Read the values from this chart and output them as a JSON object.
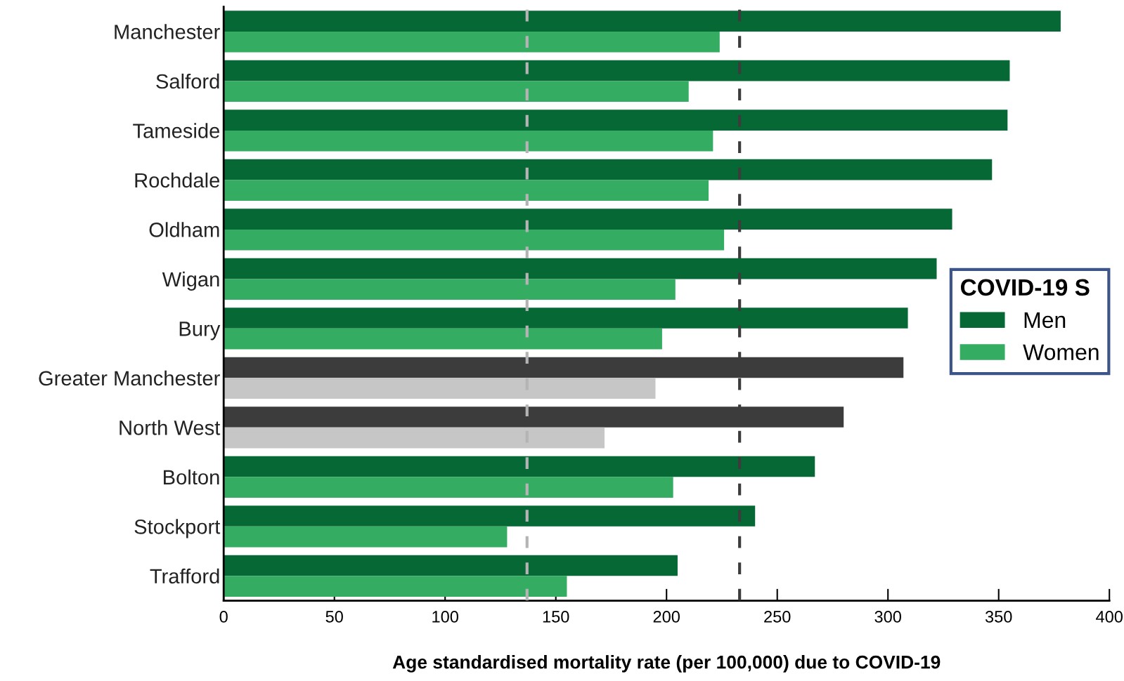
{
  "chart_data": {
    "type": "bar",
    "orientation": "horizontal",
    "xlabel": "Age standardised mortality rate (per 100,000) due to COVID-19",
    "categories": [
      "Manchester",
      "Salford",
      "Tameside",
      "Rochdale",
      "Oldham",
      "Wigan",
      "Bury",
      "Greater Manchester",
      "North West",
      "Bolton",
      "Stockport",
      "Trafford"
    ],
    "series": [
      {
        "name": "Men",
        "color": "#066835",
        "colors": [
          "#066835",
          "#066835",
          "#066835",
          "#066835",
          "#066835",
          "#066835",
          "#066835",
          "#3c3c3c",
          "#3c3c3c",
          "#066835",
          "#066835",
          "#066835"
        ],
        "values": [
          378,
          355,
          354,
          347,
          329,
          322,
          309,
          307,
          280,
          267,
          240,
          205
        ]
      },
      {
        "name": "Women",
        "color": "#34ad63",
        "colors": [
          "#34ad63",
          "#34ad63",
          "#34ad63",
          "#34ad63",
          "#34ad63",
          "#34ad63",
          "#34ad63",
          "#c6c6c6",
          "#c6c6c6",
          "#34ad63",
          "#34ad63",
          "#34ad63"
        ],
        "values": [
          224,
          210,
          221,
          219,
          226,
          204,
          198,
          195,
          172,
          203,
          128,
          155
        ]
      }
    ],
    "xlim": [
      0,
      400
    ],
    "xticks": [
      0,
      50,
      100,
      150,
      200,
      250,
      300,
      350,
      400
    ],
    "ref_lines": [
      {
        "axis": "x",
        "value": 137,
        "label": null,
        "color": "#b4b4b4",
        "line_style": "dashed"
      },
      {
        "axis": "x",
        "value": 233,
        "label": null,
        "color": "#3c3c3c",
        "line_style": "dashed"
      }
    ],
    "legend": "right",
    "legend_title": "COVID-19 S",
    "grid": false
  }
}
